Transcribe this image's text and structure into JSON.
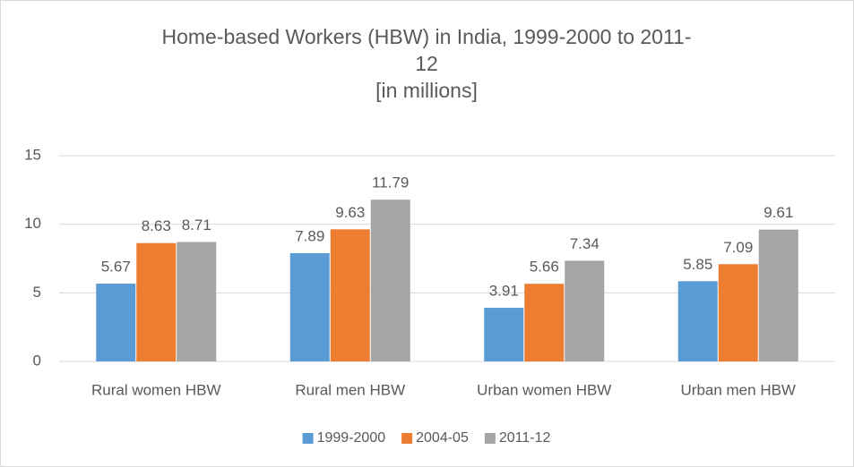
{
  "chart_data": {
    "type": "bar",
    "title": "Home-based Workers (HBW) in India, 1999-2000 to 2011-12",
    "subtitle": "[in millions]",
    "categories": [
      "Rural women HBW",
      "Rural men HBW",
      "Urban women HBW",
      "Urban men HBW"
    ],
    "series": [
      {
        "name": "1999-2000",
        "color": "#5b9bd5",
        "values": [
          5.67,
          7.89,
          3.91,
          5.85
        ]
      },
      {
        "name": "2004-05",
        "color": "#ed7d31",
        "values": [
          8.63,
          9.63,
          5.66,
          7.09
        ]
      },
      {
        "name": "2011-12",
        "color": "#a5a5a5",
        "values": [
          8.71,
          11.79,
          7.34,
          9.61
        ]
      }
    ],
    "ylim": [
      0,
      15
    ],
    "yticks": [
      0,
      5,
      10,
      15
    ],
    "grid": true,
    "legend": "bottom"
  }
}
